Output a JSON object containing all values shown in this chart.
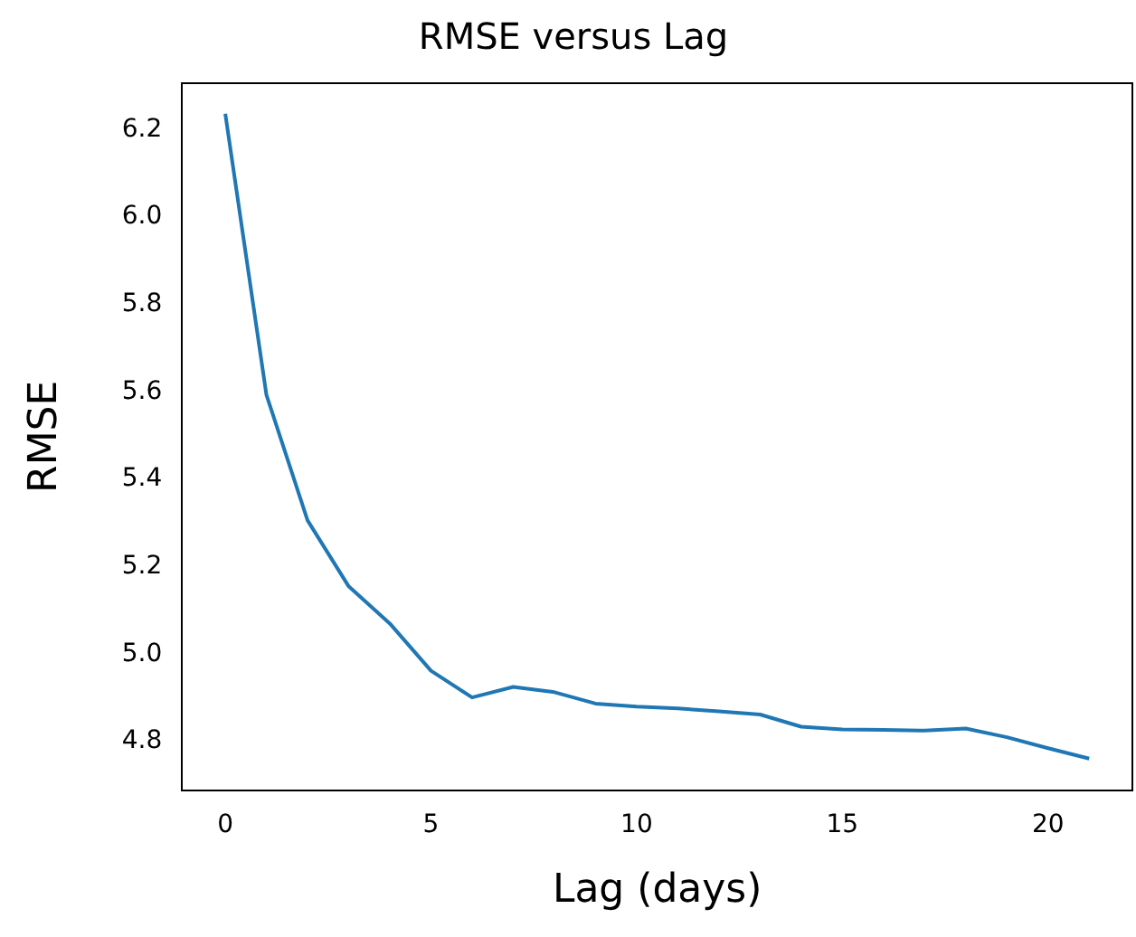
{
  "chart_data": {
    "type": "line",
    "title": "RMSE versus Lag",
    "xlabel": "Lag (days)",
    "ylabel": "RMSE",
    "x": [
      0,
      1,
      2,
      3,
      4,
      5,
      6,
      7,
      8,
      9,
      10,
      11,
      12,
      13,
      14,
      15,
      16,
      17,
      18,
      19,
      20,
      21
    ],
    "series": [
      {
        "color": "#1f77b4",
        "values": [
          6.236,
          5.593,
          5.306,
          5.155,
          5.07,
          4.962,
          4.901,
          4.925,
          4.913,
          4.887,
          4.88,
          4.876,
          4.869,
          4.862,
          4.834,
          4.828,
          4.827,
          4.825,
          4.83,
          4.81,
          4.785,
          4.761
        ]
      }
    ],
    "xlim": [
      -1.05,
      22.05
    ],
    "xticks": [
      0,
      5,
      10,
      15,
      20
    ],
    "ylim": [
      4.689,
      6.306
    ],
    "yticks": [
      {
        "value": 4.8,
        "label": "4.8"
      },
      {
        "value": 5.0,
        "label": "5.0"
      },
      {
        "value": 5.2,
        "label": "5.2"
      },
      {
        "value": 5.4,
        "label": "5.4"
      },
      {
        "value": 5.6,
        "label": "5.6"
      },
      {
        "value": 5.8,
        "label": "5.8"
      },
      {
        "value": 6.0,
        "label": "6.0"
      },
      {
        "value": 6.2,
        "label": "6.2"
      }
    ],
    "grid": false,
    "legend": false,
    "marker": "none",
    "line_style": "solid"
  }
}
